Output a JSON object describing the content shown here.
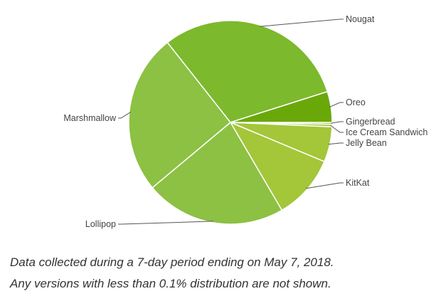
{
  "chart_data": {
    "type": "pie",
    "title": "",
    "slices": [
      {
        "label": "Gingerbread",
        "value": 0.3,
        "color": "#a4c639"
      },
      {
        "label": "Ice Cream Sandwich",
        "value": 0.4,
        "color": "#a4c639"
      },
      {
        "label": "Jelly Bean",
        "value": 5.6,
        "color": "#a4c639"
      },
      {
        "label": "KitKat",
        "value": 10.3,
        "color": "#a4c639"
      },
      {
        "label": "Lollipop",
        "value": 22.4,
        "color": "#8cc144"
      },
      {
        "label": "Marshmallow",
        "value": 25.5,
        "color": "#8cc144"
      },
      {
        "label": "Nougat",
        "value": 30.8,
        "color": "#7cb92c"
      },
      {
        "label": "Oreo",
        "value": 4.9,
        "color": "#6aa80a"
      }
    ]
  },
  "caption": {
    "line1": "Data collected during a 7-day period ending on May 7, 2018.",
    "line2": "Any versions with less than 0.1% distribution are not shown."
  }
}
